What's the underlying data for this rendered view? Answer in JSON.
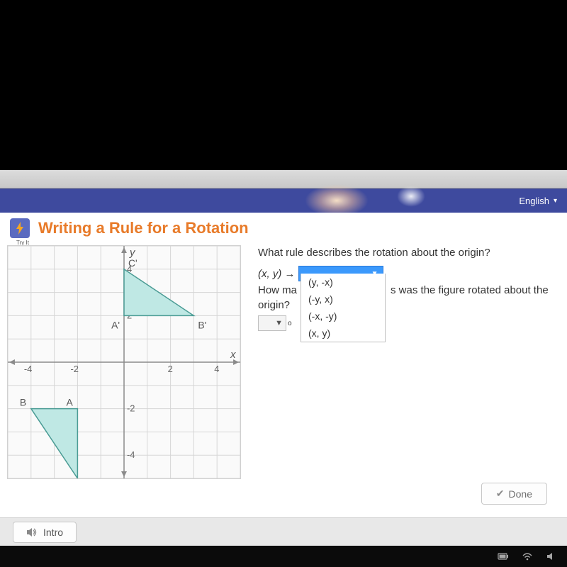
{
  "header": {
    "language_label": "English"
  },
  "badge": {
    "label": "Try It"
  },
  "title": "Writing a Rule for a Rotation",
  "question1": "What rule describes the rotation about the origin?",
  "mapping_lhs": "(x, y) →",
  "question2_a": "How ma",
  "question2_b": "s was the figure rotated about the",
  "question2_c": "origin?",
  "degree_symbol": "o",
  "dropdown": {
    "options": [
      "(y, -x)",
      "(-y, x)",
      "(-x, -y)",
      "(x, y)"
    ]
  },
  "done_label": "Done",
  "intro_label": "Intro",
  "grid": {
    "cells": 10,
    "xlim": [
      -5,
      5
    ],
    "ylim": [
      -5,
      5
    ],
    "x_ticks": [
      -4,
      -2,
      2,
      4
    ],
    "y_ticks": [
      -4,
      -2,
      2,
      4
    ],
    "x_axis_label": "x",
    "y_axis_label": "y",
    "colors": {
      "grid": "#d6d6d6",
      "axis": "#8a8a8a",
      "triangle_fill": "#bfe8e4",
      "triangle_stroke": "#4a9b94",
      "label": "#555555",
      "background": "#fafafa"
    },
    "triangle_image": {
      "points": [
        [
          0,
          2
        ],
        [
          0,
          4
        ],
        [
          3,
          2
        ]
      ],
      "labels": {
        "A'": [
          0,
          2
        ],
        "B'": [
          3,
          2
        ],
        "C'": [
          0,
          4
        ]
      },
      "label_offsets": {
        "A'": [
          -18,
          18
        ],
        "B'": [
          6,
          18
        ],
        "C'": [
          6,
          -4
        ]
      }
    },
    "triangle_preimage": {
      "points": [
        [
          -2,
          -2
        ],
        [
          -4,
          -2
        ],
        [
          -2,
          -5
        ]
      ],
      "labels": {
        "A": [
          -2,
          -2
        ],
        "B": [
          -4,
          -2
        ],
        "C": [
          -2,
          -5
        ]
      },
      "label_offsets": {
        "A": [
          -16,
          -4
        ],
        "B": [
          -16,
          -4
        ],
        "C": [
          6,
          14
        ]
      }
    }
  },
  "style": {
    "title_color": "#e87b2a",
    "header_bg": "#3e4a9e",
    "dd_selected_bg": "#3b99fc"
  }
}
